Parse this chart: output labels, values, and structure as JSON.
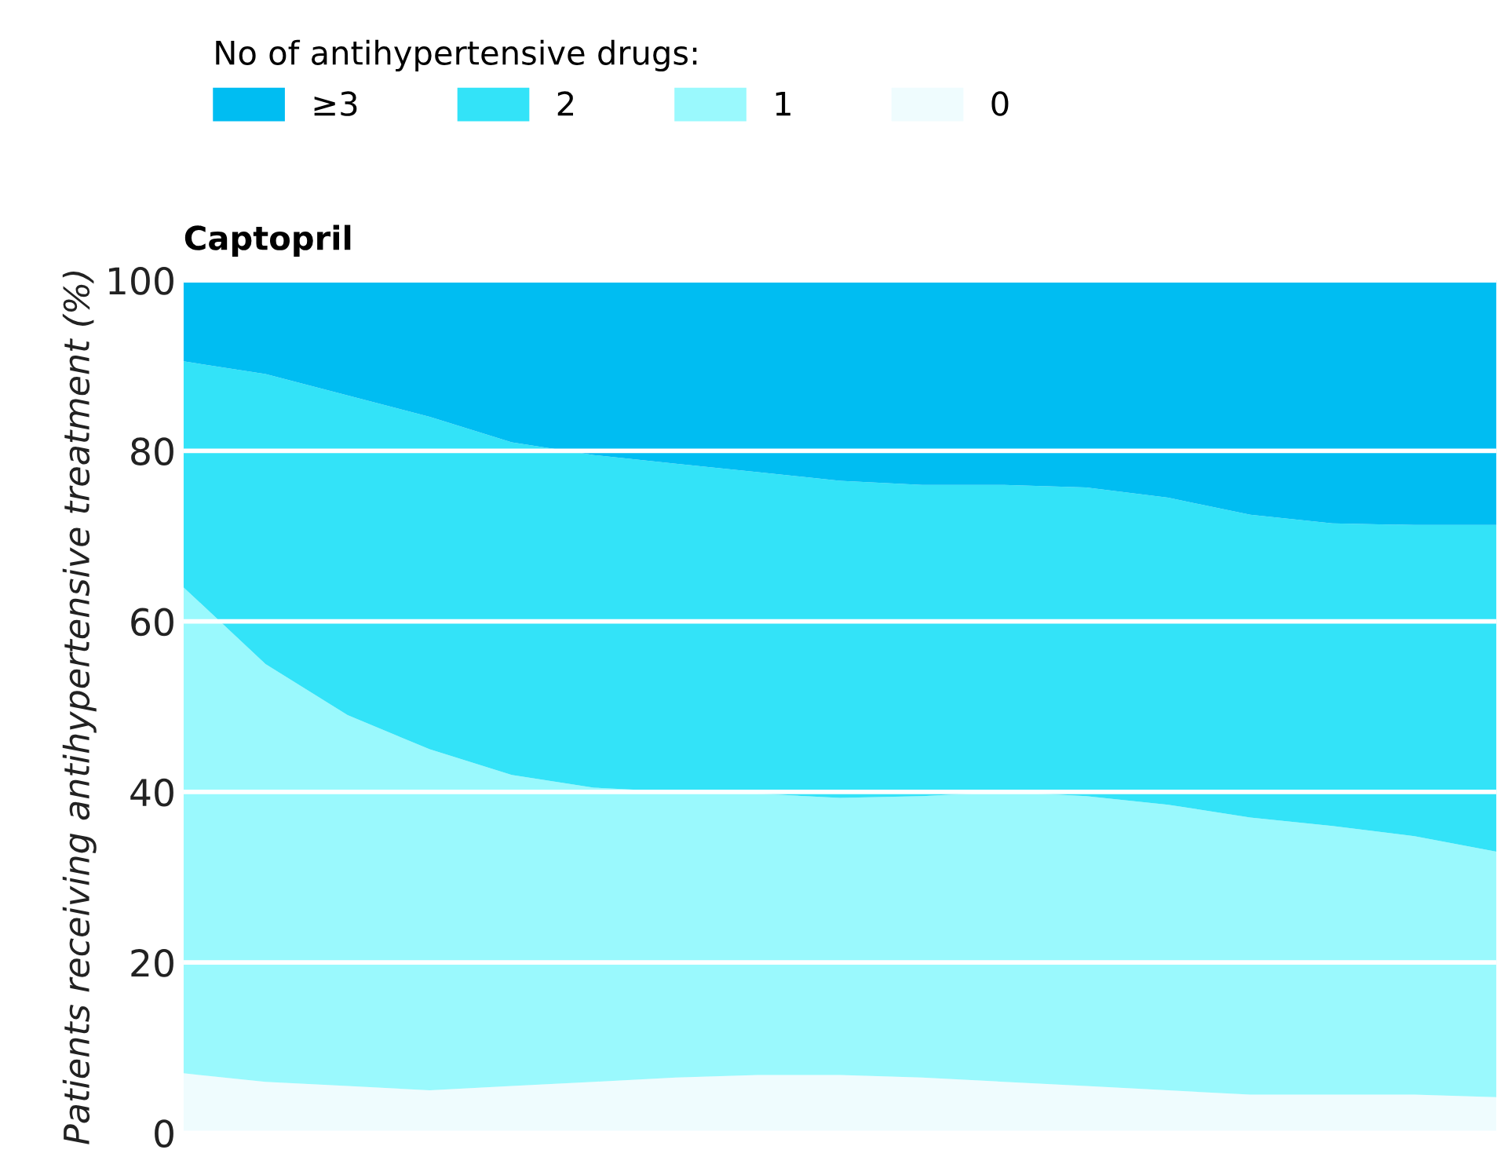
{
  "chart_data": {
    "type": "area",
    "stacked": true,
    "title": "Captopril",
    "ylabel": "Patients receiving antihypertensive treatment (%)",
    "legend_title": "No of antihypertensive drugs:",
    "legend": "top",
    "grid": "y",
    "tick_labels": "y",
    "categories": [
      null,
      null,
      null,
      null,
      null,
      null,
      null,
      null,
      null,
      null,
      null,
      null,
      null,
      null,
      null,
      null,
      null
    ],
    "ylim": [
      0,
      100
    ],
    "yticks": [
      0,
      20,
      40,
      60,
      80,
      100
    ],
    "series": [
      {
        "name": "0",
        "color": "#effcfe",
        "values": [
          7,
          6,
          5.5,
          5,
          5.5,
          6,
          6.5,
          6.8,
          6.8,
          6.5,
          6,
          5.5,
          5,
          4.5,
          4.5,
          4.5,
          4.2
        ]
      },
      {
        "name": "1",
        "color": "#9af9fd",
        "values": [
          57,
          49,
          43.5,
          40,
          36.5,
          34.5,
          33.5,
          33,
          32.5,
          33,
          34,
          34,
          33.5,
          32.5,
          31.5,
          30.3,
          28.8
        ]
      },
      {
        "name": "2",
        "color": "#33e3f8",
        "values": [
          26.5,
          34,
          37.5,
          39,
          39,
          39,
          38.5,
          37.7,
          37.2,
          36.5,
          36,
          36.2,
          36,
          35.5,
          35.5,
          36.5,
          38.3
        ]
      },
      {
        "name": "≥3",
        "color": "#00bdf2",
        "values": [
          9.5,
          11,
          13.5,
          16,
          19,
          20.5,
          21.5,
          22.5,
          23.5,
          24,
          24,
          24.3,
          25.5,
          27.5,
          28.5,
          28.7,
          28.7
        ]
      }
    ]
  }
}
